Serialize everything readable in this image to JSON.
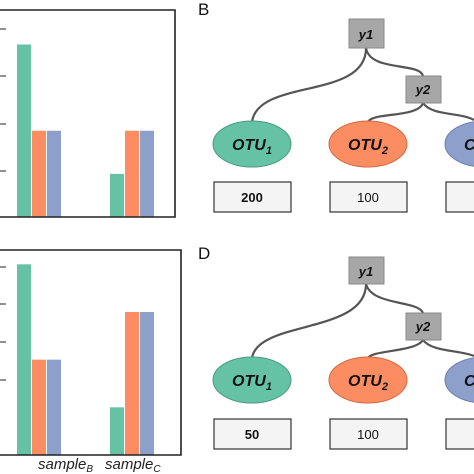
{
  "colors": {
    "otu1": "#66c2a5",
    "otu2": "#fc8d62",
    "otu3": "#8da0cb",
    "node": "#a7a7a7"
  },
  "chart_data": [
    {
      "type": "bar",
      "categories": [
        "sample_B",
        "sample_C"
      ],
      "series": [
        {
          "values": [
            4,
            1
          ]
        },
        {
          "values": [
            2,
            2
          ]
        },
        {
          "values": [
            2,
            2
          ]
        }
      ],
      "ylim": [
        0,
        4.8
      ],
      "grid": true
    },
    {
      "type": "bar",
      "categories": [
        "sample_B",
        "sample_C"
      ],
      "series": [
        {
          "values": [
            4,
            1
          ]
        },
        {
          "values": [
            2,
            3
          ]
        },
        {
          "values": [
            2,
            3
          ]
        }
      ],
      "ylim": [
        0,
        4.3
      ],
      "grid": true
    }
  ],
  "labels": {
    "sample_B": {
      "base": "sample",
      "sub": "B"
    },
    "sample_C": {
      "base": "sample",
      "sub": "C"
    }
  },
  "panels": {
    "top": {
      "letter": "B",
      "node_y1": "y1",
      "node_y2": "y2",
      "otu1": {
        "base": "OTU",
        "sub": "1"
      },
      "otu2": {
        "base": "OTU",
        "sub": "2"
      },
      "otu3": {
        "base": "C"
      },
      "count1": "200",
      "count2": "100"
    },
    "bottom": {
      "letter": "D",
      "node_y1": "y1",
      "node_y2": "y2",
      "otu1": {
        "base": "OTU",
        "sub": "1"
      },
      "otu2": {
        "base": "OTU",
        "sub": "2"
      },
      "otu3": {
        "base": "C"
      },
      "count1": "50",
      "count2": "100"
    }
  }
}
